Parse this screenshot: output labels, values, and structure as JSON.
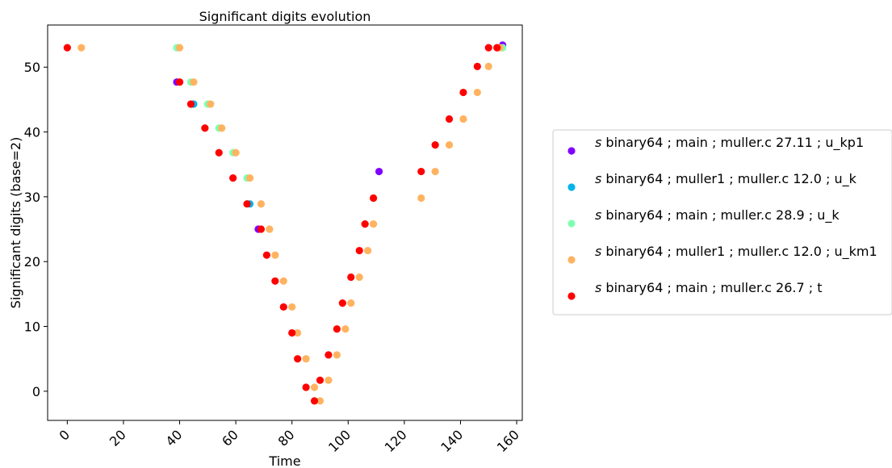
{
  "chart_data": {
    "type": "scatter",
    "title": "Significant digits evolution",
    "xlabel": "Time",
    "ylabel": "Significant digits (base=2)",
    "xlim": [
      -7,
      162
    ],
    "ylim": [
      -4.5,
      56.5
    ],
    "x_ticks": [
      0,
      20,
      40,
      60,
      80,
      100,
      120,
      140,
      160
    ],
    "y_ticks": [
      0,
      10,
      20,
      30,
      40,
      50
    ],
    "grid": false,
    "legend_position": "outside-right",
    "series": [
      {
        "name_prefix": "s",
        "name": "binary64 ; main ; muller.c 27.11 ; u_kp1",
        "color": "#8000ff",
        "points": [
          [
            155,
            53.4
          ],
          [
            39,
            47.7
          ],
          [
            68,
            25.0
          ],
          [
            111,
            33.9
          ]
        ]
      },
      {
        "name_prefix": "s",
        "name": "binary64 ; muller1 ; muller.c 12.0 ; u_k",
        "color": "#00b4eb",
        "points": [
          [
            45,
            44.3
          ],
          [
            65,
            28.9
          ]
        ]
      },
      {
        "name_prefix": "s",
        "name": "binary64 ; main ; muller.c 28.9 ; u_k",
        "color": "#80ffb4",
        "points": [
          [
            39,
            53.0
          ],
          [
            44,
            47.7
          ],
          [
            50,
            44.3
          ],
          [
            54,
            40.6
          ],
          [
            59,
            36.8
          ],
          [
            64,
            32.9
          ],
          [
            155,
            53.0
          ]
        ]
      },
      {
        "name_prefix": "s",
        "name": "binary64 ; muller1 ; muller.c 12.0 ; u_km1",
        "color": "#ffb360",
        "points": [
          [
            5,
            53.0
          ],
          [
            40,
            53.0
          ],
          [
            45,
            47.7
          ],
          [
            51,
            44.3
          ],
          [
            55,
            40.6
          ],
          [
            60,
            36.8
          ],
          [
            65,
            32.9
          ],
          [
            69,
            28.9
          ],
          [
            72,
            25.0
          ],
          [
            74,
            21.0
          ],
          [
            77,
            17.0
          ],
          [
            80,
            13.0
          ],
          [
            82,
            9.0
          ],
          [
            85,
            5.0
          ],
          [
            88,
            0.6
          ],
          [
            90,
            -1.5
          ],
          [
            93,
            1.7
          ],
          [
            96,
            5.6
          ],
          [
            99,
            9.6
          ],
          [
            101,
            13.6
          ],
          [
            104,
            17.6
          ],
          [
            107,
            21.7
          ],
          [
            109,
            25.8
          ],
          [
            126,
            29.8
          ],
          [
            131,
            33.9
          ],
          [
            136,
            38.0
          ],
          [
            141,
            42.0
          ],
          [
            146,
            46.1
          ],
          [
            150,
            50.1
          ],
          [
            154,
            53.0
          ]
        ]
      },
      {
        "name_prefix": "s",
        "name": "binary64 ; main ; muller.c 26.7 ; t",
        "color": "#ff0000",
        "points": [
          [
            0,
            53.0
          ],
          [
            40,
            47.7
          ],
          [
            44,
            44.3
          ],
          [
            49,
            40.6
          ],
          [
            54,
            36.8
          ],
          [
            59,
            32.9
          ],
          [
            64,
            28.9
          ],
          [
            69,
            25.0
          ],
          [
            71,
            21.0
          ],
          [
            74,
            17.0
          ],
          [
            77,
            13.0
          ],
          [
            80,
            9.0
          ],
          [
            82,
            5.0
          ],
          [
            85,
            0.6
          ],
          [
            88,
            -1.5
          ],
          [
            90,
            1.7
          ],
          [
            93,
            5.6
          ],
          [
            96,
            9.6
          ],
          [
            98,
            13.6
          ],
          [
            101,
            17.6
          ],
          [
            104,
            21.7
          ],
          [
            106,
            25.8
          ],
          [
            109,
            29.8
          ],
          [
            126,
            33.9
          ],
          [
            131,
            38.0
          ],
          [
            136,
            42.0
          ],
          [
            141,
            46.1
          ],
          [
            146,
            50.1
          ],
          [
            150,
            53.0
          ],
          [
            153,
            53.0
          ]
        ]
      }
    ]
  }
}
